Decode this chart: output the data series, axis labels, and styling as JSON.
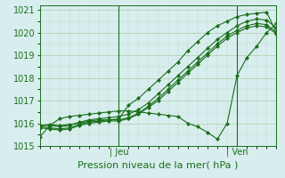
{
  "title": "",
  "xlabel": "Pression niveau de la mer( hPa )",
  "ylabel": "",
  "bg_color": "#d8eeee",
  "line_color": "#1a6e1a",
  "grid_color": "#aaccaa",
  "ylim": [
    1015.0,
    1021.2
  ],
  "xlim": [
    0,
    48
  ],
  "yticks": [
    1015,
    1016,
    1017,
    1018,
    1019,
    1020,
    1021
  ],
  "vlines": [
    16,
    40
  ],
  "vline_labels": [
    "Jeu",
    "Ven"
  ],
  "series": [
    {
      "x": [
        0,
        2,
        4,
        6,
        8,
        10,
        12,
        14,
        16,
        18,
        20,
        22,
        24,
        26,
        28,
        30,
        32,
        34,
        36,
        38,
        40,
        42,
        44,
        46,
        48
      ],
      "y": [
        1015.9,
        1015.95,
        1015.9,
        1015.95,
        1016.0,
        1016.1,
        1016.15,
        1016.15,
        1016.2,
        1016.8,
        1017.1,
        1017.5,
        1017.9,
        1018.3,
        1018.7,
        1019.2,
        1019.6,
        1020.0,
        1020.3,
        1020.5,
        1020.7,
        1020.8,
        1020.85,
        1020.9,
        1020.0
      ]
    },
    {
      "x": [
        0,
        2,
        4,
        6,
        8,
        10,
        12,
        14,
        16,
        18,
        20,
        22,
        24,
        26,
        28,
        30,
        32,
        34,
        36,
        38,
        40,
        42,
        44,
        46,
        48
      ],
      "y": [
        1015.9,
        1015.9,
        1015.85,
        1015.9,
        1016.05,
        1016.15,
        1016.2,
        1016.25,
        1016.3,
        1016.4,
        1016.6,
        1016.9,
        1017.3,
        1017.7,
        1018.1,
        1018.5,
        1018.9,
        1019.3,
        1019.7,
        1020.0,
        1020.3,
        1020.5,
        1020.6,
        1020.55,
        1020.2
      ]
    },
    {
      "x": [
        0,
        2,
        4,
        6,
        8,
        10,
        12,
        14,
        16,
        18,
        20,
        22,
        24,
        26,
        28,
        30,
        32,
        34,
        36,
        38,
        40,
        42,
        44,
        46,
        48
      ],
      "y": [
        1015.85,
        1015.8,
        1015.75,
        1015.8,
        1015.95,
        1016.05,
        1016.1,
        1016.15,
        1016.15,
        1016.25,
        1016.45,
        1016.75,
        1017.1,
        1017.5,
        1017.9,
        1018.3,
        1018.7,
        1019.1,
        1019.5,
        1019.85,
        1020.1,
        1020.3,
        1020.4,
        1020.35,
        1020.0
      ]
    },
    {
      "x": [
        0,
        2,
        4,
        6,
        8,
        10,
        12,
        14,
        16,
        18,
        20,
        22,
        24,
        26,
        28,
        30,
        32,
        34,
        36,
        38,
        40,
        42,
        44,
        46,
        48
      ],
      "y": [
        1015.8,
        1015.75,
        1015.7,
        1015.75,
        1015.9,
        1016.0,
        1016.05,
        1016.1,
        1016.1,
        1016.2,
        1016.4,
        1016.7,
        1017.0,
        1017.4,
        1017.8,
        1018.2,
        1018.6,
        1019.0,
        1019.4,
        1019.75,
        1020.0,
        1020.2,
        1020.3,
        1020.25,
        1019.95
      ]
    },
    {
      "x": [
        0,
        2,
        4,
        6,
        8,
        10,
        12,
        14,
        16,
        18,
        20,
        22,
        24,
        26,
        28,
        30,
        32,
        34,
        36,
        38,
        40,
        42,
        44,
        46,
        48
      ],
      "y": [
        1015.4,
        1015.9,
        1016.2,
        1016.3,
        1016.35,
        1016.4,
        1016.45,
        1016.5,
        1016.55,
        1016.55,
        1016.5,
        1016.45,
        1016.4,
        1016.35,
        1016.3,
        1016.0,
        1015.85,
        1015.6,
        1015.3,
        1016.0,
        1018.1,
        1018.9,
        1019.4,
        1020.0,
        1020.4
      ]
    }
  ]
}
